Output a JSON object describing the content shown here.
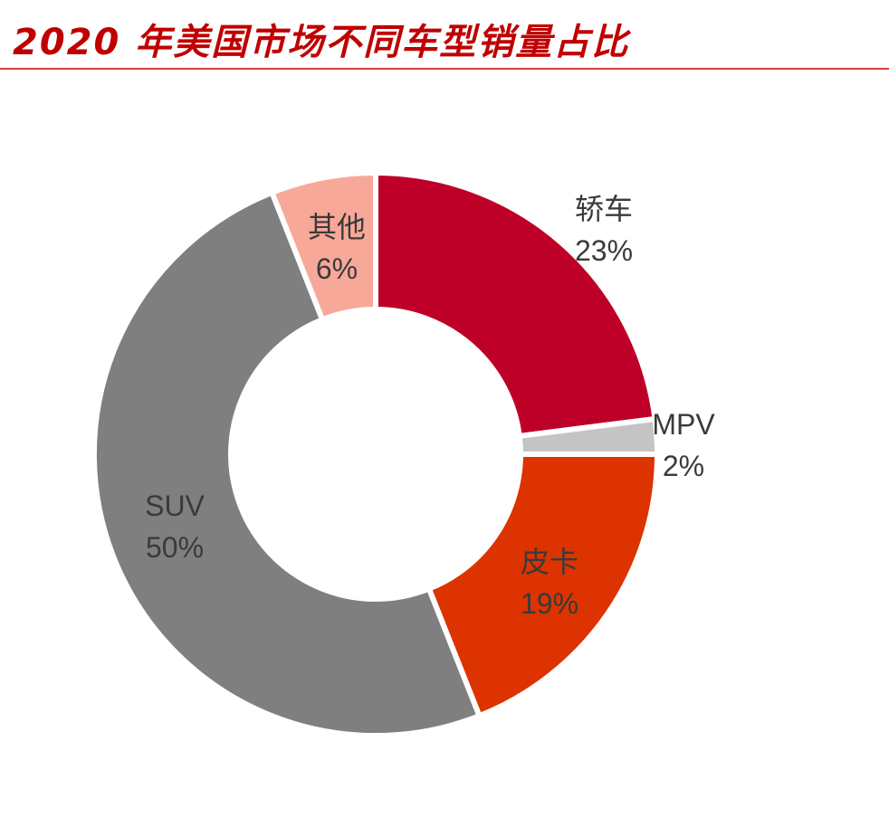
{
  "title": "2020 年美国市场不同车型销量占比",
  "chart_data": {
    "type": "pie",
    "variant": "donut",
    "title": "2020 年美国市场不同车型销量占比",
    "categories": [
      "轿车",
      "MPV",
      "皮卡",
      "SUV",
      "其他"
    ],
    "values": [
      23,
      2,
      19,
      50,
      6
    ],
    "value_labels": [
      "23%",
      "2%",
      "19%",
      "50%",
      "6%"
    ],
    "colors": [
      "#be0028",
      "#c4c4c4",
      "#dc3300",
      "#807f80",
      "#f8a898"
    ],
    "start": "top",
    "direction": "clockwise"
  }
}
